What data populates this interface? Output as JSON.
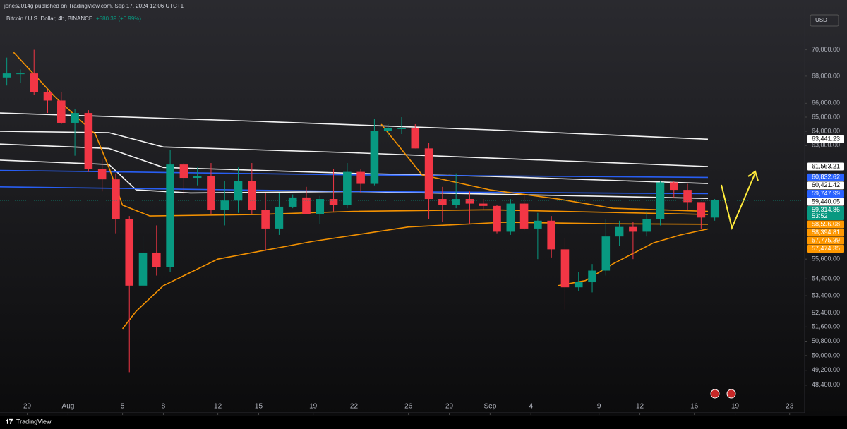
{
  "header": {
    "published": "jones2014g published on TradingView.com, Sep 17, 2024 12:06 UTC+1",
    "change": "+580.39 (+0.99%)",
    "currency": "USD"
  },
  "footer": {
    "brand": "TradingView"
  },
  "chart_data": {
    "type": "candlestick",
    "title": "Bitcoin / U.S. Dollar, 4h, BINANCE",
    "log_scale": true,
    "grid": false,
    "up_color": "#089981",
    "down_color": "#f23645",
    "ylim": [
      46950,
      73370
    ],
    "xlim": [
      "2024-07-27",
      "2024-09-24"
    ],
    "yticks": [
      {
        "value": 70000,
        "label": "70,000.00"
      },
      {
        "value": 68000,
        "label": "68,000.00"
      },
      {
        "value": 66000,
        "label": "66,000.00"
      },
      {
        "value": 65000,
        "label": "65,000.00"
      },
      {
        "value": 64000,
        "label": "64,000.00"
      },
      {
        "value": 63000,
        "label": "63,000.00"
      },
      {
        "value": 55600,
        "label": "55,600.00"
      },
      {
        "value": 54400,
        "label": "54,400.00"
      },
      {
        "value": 53400,
        "label": "53,400.00"
      },
      {
        "value": 52400,
        "label": "52,400.00"
      },
      {
        "value": 51600,
        "label": "51,600.00"
      },
      {
        "value": 50800,
        "label": "50,800.00"
      },
      {
        "value": 50000,
        "label": "50,000.00"
      },
      {
        "value": 49200,
        "label": "49,200.00"
      },
      {
        "value": 48400,
        "label": "48,400.00"
      }
    ],
    "xticks": [
      {
        "value": "2024-07-29",
        "label": "29"
      },
      {
        "value": "2024-08-01",
        "label": "Aug"
      },
      {
        "value": "2024-08-05",
        "label": "5"
      },
      {
        "value": "2024-08-08",
        "label": "8"
      },
      {
        "value": "2024-08-12",
        "label": "12"
      },
      {
        "value": "2024-08-15",
        "label": "15"
      },
      {
        "value": "2024-08-19",
        "label": "19"
      },
      {
        "value": "2024-08-22",
        "label": "22"
      },
      {
        "value": "2024-08-26",
        "label": "26"
      },
      {
        "value": "2024-08-29",
        "label": "29"
      },
      {
        "value": "2024-09-01",
        "label": "Sep"
      },
      {
        "value": "2024-09-04",
        "label": "4"
      },
      {
        "value": "2024-09-09",
        "label": "9"
      },
      {
        "value": "2024-09-12",
        "label": "12"
      },
      {
        "value": "2024-09-16",
        "label": "16"
      },
      {
        "value": "2024-09-19",
        "label": "19"
      },
      {
        "value": "2024-09-23",
        "label": "23"
      }
    ],
    "x": [
      "2024-07-27",
      "2024-07-28",
      "2024-07-29",
      "2024-07-30",
      "2024-07-31",
      "2024-08-01",
      "2024-08-02",
      "2024-08-03",
      "2024-08-04",
      "2024-08-05",
      "2024-08-06",
      "2024-08-07",
      "2024-08-08",
      "2024-08-09",
      "2024-08-10",
      "2024-08-11",
      "2024-08-12",
      "2024-08-13",
      "2024-08-14",
      "2024-08-15",
      "2024-08-16",
      "2024-08-17",
      "2024-08-18",
      "2024-08-19",
      "2024-08-20",
      "2024-08-21",
      "2024-08-22",
      "2024-08-23",
      "2024-08-24",
      "2024-08-25",
      "2024-08-26",
      "2024-08-27",
      "2024-08-28",
      "2024-08-29",
      "2024-08-30",
      "2024-08-31",
      "2024-09-01",
      "2024-09-02",
      "2024-09-03",
      "2024-09-04",
      "2024-09-05",
      "2024-09-06",
      "2024-09-07",
      "2024-09-08",
      "2024-09-09",
      "2024-09-10",
      "2024-09-11",
      "2024-09-12",
      "2024-09-13",
      "2024-09-14",
      "2024-09-15",
      "2024-09-16",
      "2024-09-17"
    ],
    "open": [
      67900,
      68200,
      68200,
      66800,
      66200,
      64600,
      65300,
      61400,
      60700,
      58100,
      54000,
      56000,
      55100,
      61700,
      60800,
      60900,
      58700,
      59300,
      60600,
      58700,
      57500,
      58900,
      59500,
      58400,
      59400,
      59000,
      61200,
      60400,
      64000,
      64200,
      64200,
      62800,
      59400,
      59000,
      59400,
      59100,
      58950,
      57300,
      59100,
      57500,
      58000,
      56200,
      53900,
      54200,
      54900,
      57000,
      57600,
      57300,
      58100,
      60500,
      60000,
      59200,
      58200
    ],
    "high": [
      69400,
      68500,
      70000,
      67000,
      66800,
      65600,
      65500,
      62100,
      61100,
      58300,
      57000,
      57700,
      62700,
      61800,
      61500,
      61800,
      60600,
      61500,
      61800,
      59800,
      59800,
      59700,
      60200,
      59600,
      61400,
      61800,
      61400,
      64900,
      64500,
      65000,
      64500,
      63200,
      60200,
      61100,
      59900,
      59400,
      59000,
      59400,
      59800,
      58500,
      58300,
      56900,
      54800,
      55300,
      58100,
      58000,
      57900,
      58600,
      60600,
      60600,
      60400,
      59200,
      59400
    ],
    "low": [
      67300,
      67500,
      66600,
      65300,
      64500,
      62300,
      61200,
      59900,
      57200,
      49100,
      53900,
      54600,
      54800,
      59700,
      60300,
      58400,
      57700,
      58500,
      58400,
      56100,
      57100,
      58800,
      58400,
      57800,
      58600,
      58800,
      59800,
      60300,
      63600,
      63800,
      62800,
      58100,
      57900,
      58800,
      57800,
      58700,
      57200,
      57100,
      57400,
      55600,
      55700,
      52600,
      53700,
      53600,
      54600,
      56400,
      55600,
      57000,
      57700,
      59500,
      58700,
      57500,
      58000
    ],
    "close": [
      68200,
      68200,
      66800,
      66200,
      64600,
      65300,
      61400,
      60700,
      58100,
      54000,
      56000,
      55100,
      61700,
      60800,
      60900,
      58700,
      59300,
      60600,
      58700,
      57500,
      58900,
      59500,
      58400,
      59400,
      59000,
      61200,
      60400,
      64000,
      64200,
      64200,
      62800,
      59400,
      59000,
      59400,
      59100,
      58950,
      57300,
      59100,
      57500,
      58000,
      56200,
      53900,
      54200,
      54900,
      57000,
      57600,
      57300,
      58100,
      60500,
      60000,
      59200,
      58200,
      59314.86
    ],
    "overlays": [
      {
        "color": "#ffffff",
        "x": [
          "2024-07-27",
          "2024-08-15",
          "2024-09-01",
          "2024-09-17"
        ],
        "values": [
          65300,
          64700,
          64100,
          63441.23
        ]
      },
      {
        "color": "#ffffff",
        "x": [
          "2024-07-27",
          "2024-08-04",
          "2024-08-08",
          "2024-08-22",
          "2024-09-17"
        ],
        "values": [
          64000,
          63900,
          62900,
          62500,
          61563.21
        ]
      },
      {
        "color": "#ffffff",
        "x": [
          "2024-07-27",
          "2024-08-04",
          "2024-08-08",
          "2024-08-22",
          "2024-09-01",
          "2024-09-17"
        ],
        "values": [
          63100,
          62800,
          61500,
          61100,
          60900,
          60421.42
        ]
      },
      {
        "color": "#ffffff",
        "x": [
          "2024-07-27",
          "2024-08-04",
          "2024-08-06",
          "2024-08-10",
          "2024-08-22",
          "2024-09-17"
        ],
        "values": [
          62000,
          61700,
          60000,
          59800,
          59900,
          59440.05
        ]
      },
      {
        "color": "#2962ff",
        "x": [
          "2024-07-27",
          "2024-08-22",
          "2024-09-17"
        ],
        "values": [
          61300,
          61000,
          60832.62
        ]
      },
      {
        "color": "#2962ff",
        "x": [
          "2024-07-27",
          "2024-08-22",
          "2024-09-17"
        ],
        "values": [
          60200,
          59900,
          59747.99
        ]
      },
      {
        "color": "#ff9800",
        "x": [
          "2024-07-28",
          "2024-07-31",
          "2024-08-03",
          "2024-08-04",
          "2024-08-05",
          "2024-08-07",
          "2024-08-15",
          "2024-08-22",
          "2024-09-01",
          "2024-09-17"
        ],
        "values": [
          69800,
          66500,
          63800,
          61500,
          59000,
          58300,
          58400,
          58600,
          58700,
          58394.81
        ]
      },
      {
        "color": "#ff9800",
        "x": [
          "2024-08-24",
          "2024-08-27",
          "2024-09-01",
          "2024-09-06",
          "2024-09-10",
          "2024-09-17"
        ],
        "values": [
          64500,
          61000,
          60000,
          59400,
          58800,
          58596.08
        ]
      },
      {
        "color": "#ff9800",
        "x": [
          "2024-08-05",
          "2024-08-06",
          "2024-08-08",
          "2024-08-12",
          "2024-08-19",
          "2024-08-26",
          "2024-09-02",
          "2024-09-10",
          "2024-09-17"
        ],
        "values": [
          51500,
          52500,
          54000,
          55600,
          56700,
          57600,
          57900,
          57800,
          57775.39
        ]
      },
      {
        "color": "#ff9800",
        "x": [
          "2024-09-06",
          "2024-09-08",
          "2024-09-10",
          "2024-09-13",
          "2024-09-15",
          "2024-09-17"
        ],
        "values": [
          54000,
          54300,
          55300,
          56600,
          57100,
          57474.35
        ]
      }
    ],
    "price_labels": [
      {
        "value": 63441.23,
        "label": "63,441.23",
        "color": "#ffffff"
      },
      {
        "value": 61563.21,
        "label": "61,563.21",
        "color": "#ffffff"
      },
      {
        "value": 60832.62,
        "label": "60,832.62",
        "color": "#2962ff"
      },
      {
        "value": 60421.42,
        "label": "60,421.42",
        "color": "#ffffff"
      },
      {
        "value": 59747.99,
        "label": "59,747.99",
        "color": "#2962ff"
      },
      {
        "value": 59440.05,
        "label": "59,440.05",
        "color": "#ffffff"
      },
      {
        "value": 59314.86,
        "label": "59,314.86",
        "color": "#089981",
        "countdown": "53:52"
      },
      {
        "value": 58596.08,
        "label": "58,596.08",
        "color": "#ff9800"
      },
      {
        "value": 58394.81,
        "label": "58,394.81",
        "color": "#ff9800"
      },
      {
        "value": 57775.39,
        "label": "57,775.39",
        "color": "#ff9800"
      },
      {
        "value": 57474.35,
        "label": "57,474.35",
        "color": "#ff9800"
      }
    ]
  }
}
